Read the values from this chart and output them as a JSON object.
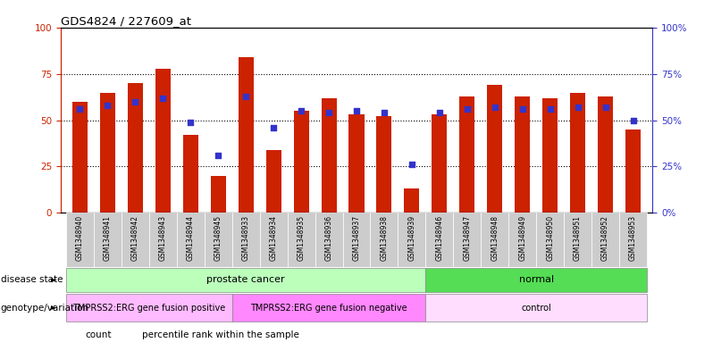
{
  "title": "GDS4824 / 227609_at",
  "samples": [
    "GSM1348940",
    "GSM1348941",
    "GSM1348942",
    "GSM1348943",
    "GSM1348944",
    "GSM1348945",
    "GSM1348933",
    "GSM1348934",
    "GSM1348935",
    "GSM1348936",
    "GSM1348937",
    "GSM1348938",
    "GSM1348939",
    "GSM1348946",
    "GSM1348947",
    "GSM1348948",
    "GSM1348949",
    "GSM1348950",
    "GSM1348951",
    "GSM1348952",
    "GSM1348953"
  ],
  "bar_values": [
    60,
    65,
    70,
    78,
    42,
    20,
    84,
    34,
    55,
    62,
    53,
    52,
    13,
    53,
    63,
    69,
    63,
    62,
    65,
    63,
    45
  ],
  "dot_values": [
    56,
    58,
    60,
    62,
    49,
    31,
    63,
    46,
    55,
    54,
    55,
    54,
    26,
    54,
    56,
    57,
    56,
    56,
    57,
    57,
    50
  ],
  "bar_color": "#cc2200",
  "dot_color": "#3333cc",
  "ylim": [
    0,
    100
  ],
  "yticks": [
    0,
    25,
    50,
    75,
    100
  ],
  "disease_state_label": "disease state",
  "genotype_label": "genotype/variation",
  "disease_groups": [
    {
      "label": "prostate cancer",
      "start": 0,
      "end": 12,
      "color": "#bbffbb"
    },
    {
      "label": "normal",
      "start": 13,
      "end": 20,
      "color": "#55dd55"
    }
  ],
  "genotype_groups": [
    {
      "label": "TMPRSS2:ERG gene fusion positive",
      "start": 0,
      "end": 5,
      "color": "#ffbbff"
    },
    {
      "label": "TMPRSS2:ERG gene fusion negative",
      "start": 6,
      "end": 12,
      "color": "#ff88ff"
    },
    {
      "label": "control",
      "start": 13,
      "end": 20,
      "color": "#ffddff"
    }
  ],
  "legend_count_label": "count",
  "legend_pct_label": "percentile rank within the sample",
  "bg_color": "#ffffff",
  "tick_color_left": "#cc2200",
  "tick_color_right": "#3333cc",
  "xtick_bg": "#cccccc"
}
